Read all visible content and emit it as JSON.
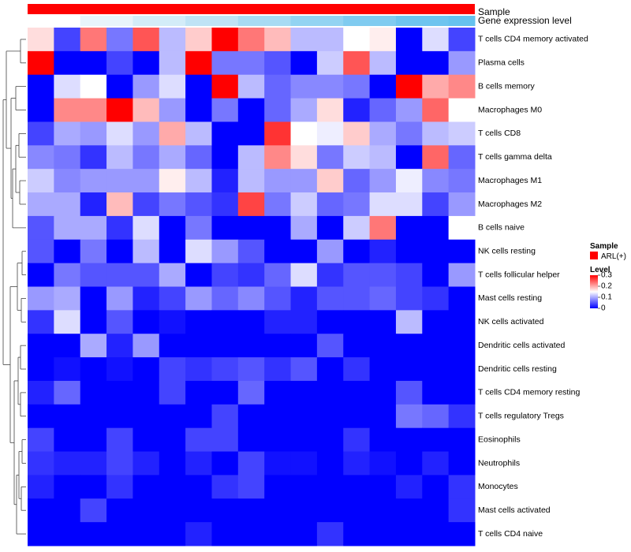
{
  "chart_data": {
    "type": "heatmap",
    "title": "",
    "annotations": [
      {
        "name": "Sample",
        "colors": [
          "#ff0000"
        ]
      },
      {
        "name": "Gene expression level",
        "colors": [
          "#ffffff",
          "#e8f4fb",
          "#d3ecf8",
          "#bfe3f5",
          "#a8dbf3",
          "#93d3f2",
          "#80cbf0",
          "#6ec4ef",
          "#66c2ee"
        ]
      }
    ],
    "rows": [
      "T cells CD4 memory activated",
      "Plasma cells",
      "B cells memory",
      "Macrophages M0",
      "T cells CD8",
      "T cells gamma delta",
      "Macrophages M1",
      "Macrophages M2",
      "B cells naive",
      "NK cells resting",
      "T cells follicular helper",
      "Mast cells resting",
      "NK cells activated",
      "Dendritic cells activated",
      "Dendritic cells resting",
      "T cells CD4 memory resting",
      "T cells regulatory  Tregs",
      "Eosinophils",
      "Neutrophils",
      "Monocytes",
      "Mast cells activated",
      "T cells CD4 naive"
    ],
    "columns": 17,
    "values": [
      [
        0.17,
        0.04,
        0.23,
        0.07,
        0.25,
        0.11,
        0.18,
        0.3,
        0.23,
        0.19,
        0.11,
        0.11,
        0.15,
        0.16,
        0.0,
        0.13,
        0.04
      ],
      [
        0.3,
        0.0,
        0.0,
        0.04,
        0.0,
        0.11,
        0.3,
        0.07,
        0.07,
        0.05,
        0.0,
        0.12,
        0.25,
        0.11,
        0.0,
        0.0,
        0.09
      ],
      [
        0.0,
        0.13,
        0.15,
        0.0,
        0.09,
        0.13,
        0.0,
        0.3,
        0.11,
        0.06,
        0.08,
        0.08,
        0.07,
        0.0,
        0.3,
        0.2,
        0.22
      ],
      [
        0.0,
        0.22,
        0.22,
        0.3,
        0.19,
        0.09,
        0.0,
        0.07,
        0.0,
        0.06,
        0.1,
        0.17,
        0.02,
        0.06,
        0.09,
        0.24,
        0.15
      ],
      [
        0.04,
        0.1,
        0.09,
        0.13,
        0.09,
        0.2,
        0.11,
        0.0,
        0.0,
        0.27,
        0.15,
        0.14,
        0.18,
        0.1,
        0.07,
        0.11,
        0.12
      ],
      [
        0.08,
        0.07,
        0.03,
        0.11,
        0.07,
        0.1,
        0.06,
        0.0,
        0.11,
        0.22,
        0.17,
        0.07,
        0.12,
        0.11,
        0.0,
        0.24,
        0.06
      ],
      [
        0.12,
        0.08,
        0.09,
        0.09,
        0.09,
        0.16,
        0.11,
        0.02,
        0.11,
        0.09,
        0.09,
        0.18,
        0.06,
        0.09,
        0.14,
        0.08,
        0.07
      ],
      [
        0.1,
        0.1,
        0.02,
        0.19,
        0.04,
        0.07,
        0.05,
        0.03,
        0.26,
        0.07,
        0.12,
        0.06,
        0.07,
        0.13,
        0.13,
        0.04,
        0.09
      ],
      [
        0.05,
        0.1,
        0.1,
        0.03,
        0.13,
        0.0,
        0.07,
        0.0,
        0.0,
        0.0,
        0.1,
        0.0,
        0.12,
        0.23,
        0.0,
        0.0,
        0.15
      ],
      [
        0.05,
        0.0,
        0.07,
        0.0,
        0.11,
        0.0,
        0.13,
        0.09,
        0.05,
        0.0,
        0.0,
        0.09,
        0.0,
        0.02,
        0.0,
        0.0,
        0.0
      ],
      [
        0.0,
        0.07,
        0.05,
        0.05,
        0.05,
        0.1,
        0.0,
        0.04,
        0.03,
        0.06,
        0.13,
        0.03,
        0.05,
        0.05,
        0.04,
        0.0,
        0.09
      ],
      [
        0.09,
        0.1,
        0.0,
        0.09,
        0.02,
        0.04,
        0.09,
        0.06,
        0.08,
        0.05,
        0.02,
        0.05,
        0.05,
        0.06,
        0.04,
        0.03,
        0.0
      ],
      [
        0.03,
        0.13,
        0.0,
        0.05,
        0.0,
        0.01,
        0.0,
        0.0,
        0.0,
        0.02,
        0.02,
        0.0,
        0.0,
        0.0,
        0.11,
        0.0,
        0.0
      ],
      [
        0.0,
        0.0,
        0.1,
        0.02,
        0.09,
        0.0,
        0.0,
        0.0,
        0.0,
        0.0,
        0.0,
        0.05,
        0.0,
        0.0,
        0.0,
        0.0,
        0.0
      ],
      [
        0.0,
        0.01,
        0.0,
        0.01,
        0.0,
        0.04,
        0.03,
        0.04,
        0.05,
        0.03,
        0.05,
        0.0,
        0.03,
        0.0,
        0.0,
        0.0,
        0.0
      ],
      [
        0.02,
        0.06,
        0.0,
        0.0,
        0.0,
        0.04,
        0.0,
        0.0,
        0.06,
        0.0,
        0.0,
        0.0,
        0.0,
        0.0,
        0.05,
        0.0,
        0.0
      ],
      [
        0.0,
        0.0,
        0.0,
        0.0,
        0.0,
        0.0,
        0.0,
        0.04,
        0.0,
        0.0,
        0.0,
        0.0,
        0.0,
        0.0,
        0.07,
        0.06,
        0.03
      ],
      [
        0.04,
        0.0,
        0.0,
        0.04,
        0.0,
        0.0,
        0.04,
        0.04,
        0.0,
        0.0,
        0.0,
        0.0,
        0.03,
        0.0,
        0.0,
        0.0,
        0.0
      ],
      [
        0.03,
        0.02,
        0.02,
        0.04,
        0.02,
        0.0,
        0.02,
        0.0,
        0.04,
        0.01,
        0.01,
        0.0,
        0.02,
        0.01,
        0.0,
        0.02,
        0.0
      ],
      [
        0.02,
        0.0,
        0.0,
        0.03,
        0.0,
        0.0,
        0.0,
        0.03,
        0.04,
        0.0,
        0.0,
        0.0,
        0.0,
        0.0,
        0.02,
        0.0,
        0.03
      ],
      [
        0.0,
        0.0,
        0.04,
        0.0,
        0.0,
        0.0,
        0.0,
        0.0,
        0.0,
        0.0,
        0.0,
        0.0,
        0.0,
        0.0,
        0.0,
        0.0,
        0.03
      ],
      [
        0.0,
        0.0,
        0.0,
        0.0,
        0.0,
        0.0,
        0.02,
        0.0,
        0.0,
        0.0,
        0.0,
        0.03,
        0.0,
        0.0,
        0.0,
        0.0,
        0.0
      ]
    ],
    "color_scale": {
      "low": "#0000ff",
      "mid": "#ffffff",
      "high": "#ff0000",
      "min": 0,
      "max": 0.3
    },
    "legend": {
      "sample_title": "Sample",
      "sample_items": [
        {
          "label": "ARL(+)",
          "color": "#ff0000"
        }
      ],
      "level_title": "Level",
      "level_ticks": [
        0.3,
        0.2,
        0.1,
        0
      ]
    },
    "dendrogram": "row clustering tree on the left"
  }
}
